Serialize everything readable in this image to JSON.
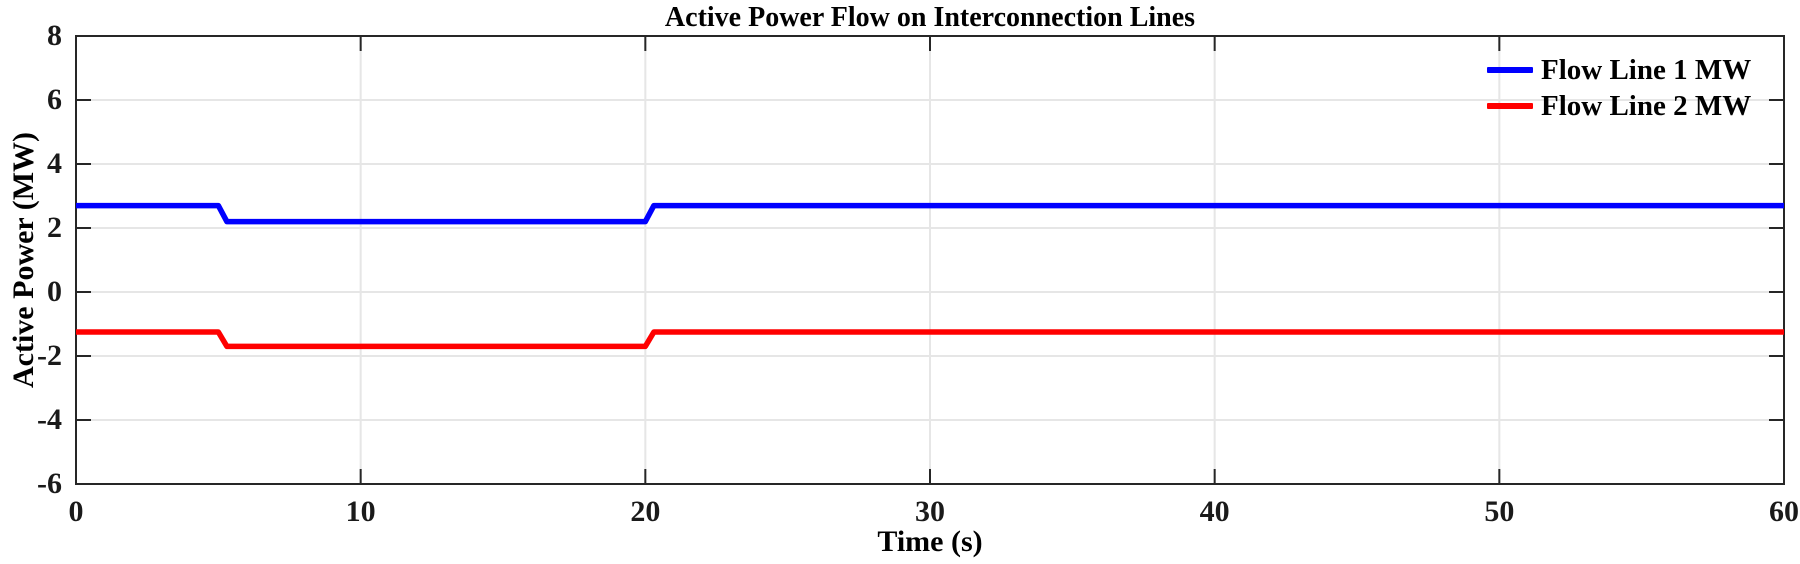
{
  "chart_data": {
    "type": "line",
    "title": "Active Power Flow on Interconnection Lines",
    "xlabel": "Time (s)",
    "ylabel": "Active Power (MW)",
    "xlim": [
      0,
      60
    ],
    "ylim": [
      -6,
      8
    ],
    "xticks": [
      0,
      10,
      20,
      30,
      40,
      50,
      60
    ],
    "yticks": [
      -6,
      -4,
      -2,
      0,
      2,
      4,
      6,
      8
    ],
    "grid": true,
    "box": true,
    "legend": {
      "location": "northeast",
      "entries": [
        "Flow Line 1 MW",
        "Flow Line 2 MW"
      ]
    },
    "series": [
      {
        "name": "Flow Line 1 MW",
        "color": "#0000ff",
        "points": [
          [
            0,
            2.7
          ],
          [
            5,
            2.7
          ],
          [
            5.3,
            2.2
          ],
          [
            20,
            2.2
          ],
          [
            20.3,
            2.7
          ],
          [
            60,
            2.7
          ]
        ]
      },
      {
        "name": "Flow Line 2 MW",
        "color": "#ff0000",
        "points": [
          [
            0,
            -1.25
          ],
          [
            5,
            -1.25
          ],
          [
            5.3,
            -1.7
          ],
          [
            20,
            -1.7
          ],
          [
            20.3,
            -1.25
          ],
          [
            60,
            -1.25
          ]
        ]
      }
    ],
    "events": [
      {
        "time": 5,
        "description": "step down on both lines"
      },
      {
        "time": 20,
        "description": "step back up on both lines"
      }
    ],
    "colors": {
      "axis": "#262626",
      "grid": "#e6e6e6",
      "background": "#ffffff"
    }
  }
}
